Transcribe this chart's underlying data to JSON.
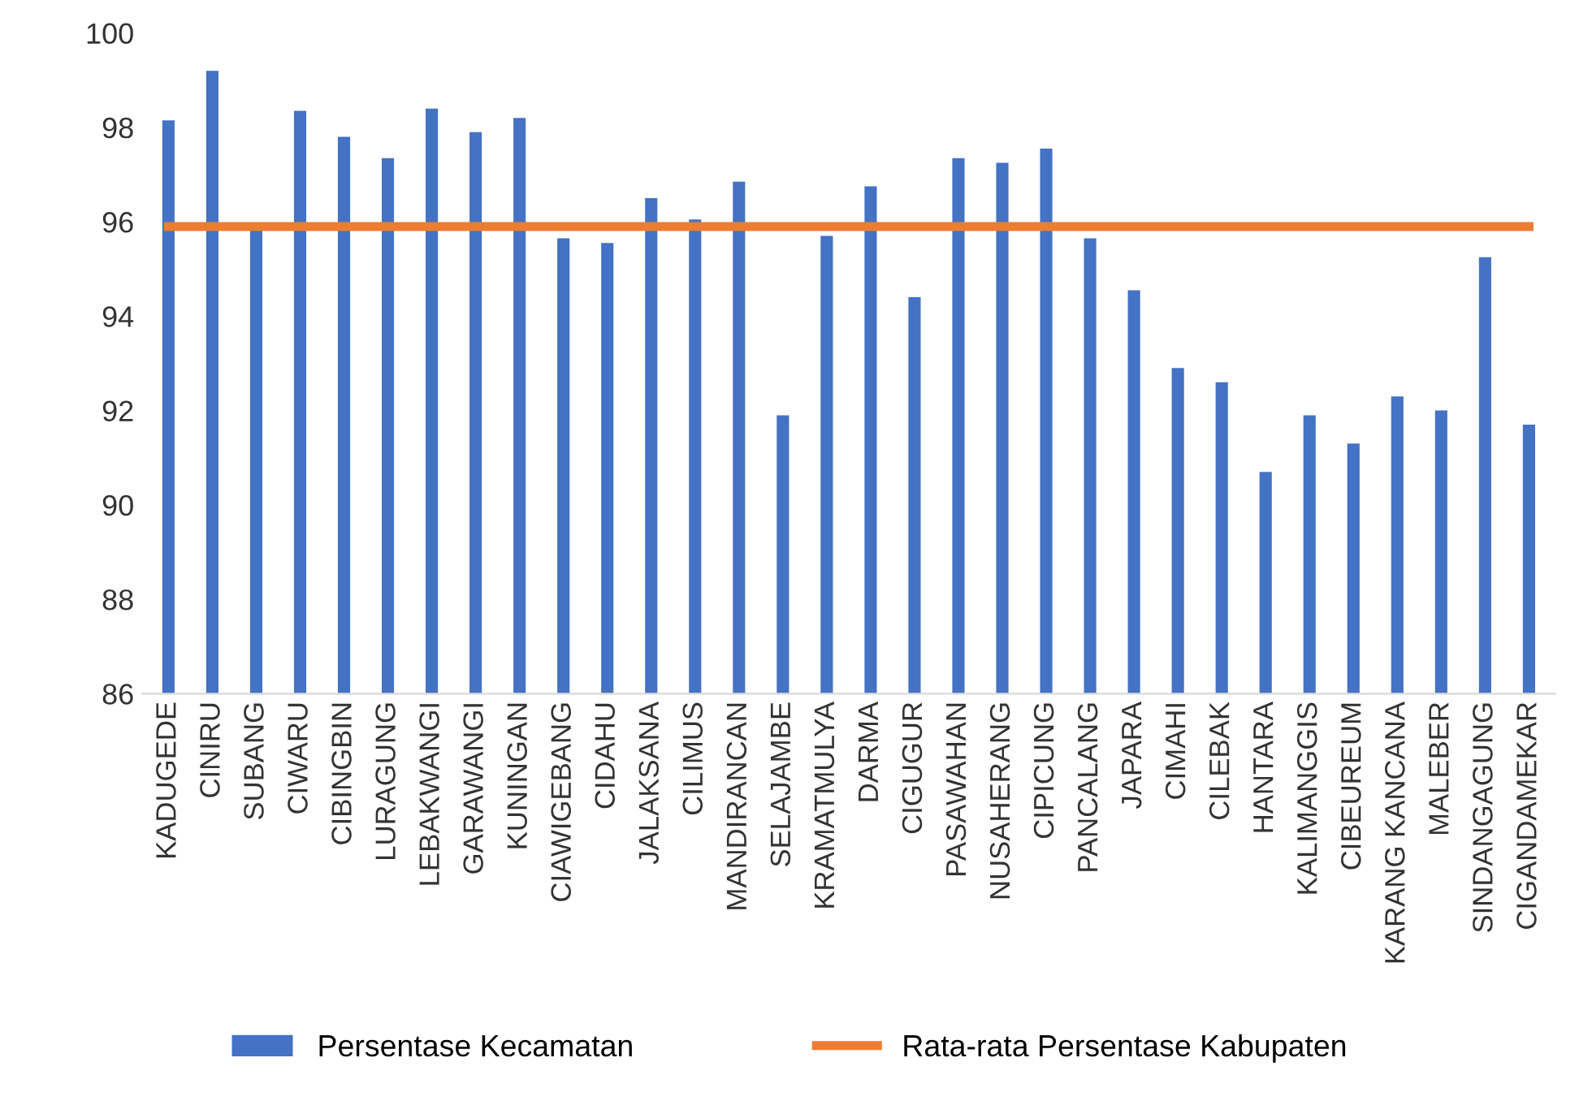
{
  "chart_data": {
    "type": "bar",
    "categories": [
      "KADUGEDE",
      "CINIRU",
      "SUBANG",
      "CIWARU",
      "CIBINGBIN",
      "LURAGUNG",
      "LEBAKWANGI",
      "GARAWANGI",
      "KUNINGAN",
      "CIAWIGEBANG",
      "CIDAHU",
      "JALAKSANA",
      "CILIMUS",
      "MANDIRANCAN",
      "SELAJAMBE",
      "KRAMATMULYA",
      "DARMA",
      "CIGUGUR",
      "PASAWAHAN",
      "NUSAHERANG",
      "CIPICUNG",
      "PANCALANG",
      "JAPARA",
      "CIMAHI",
      "CILEBAK",
      "HANTARA",
      "KALIMANGGIS",
      "CIBEUREUM",
      "KARANG KANCANA",
      "MALEBER",
      "SINDANGAGUNG",
      "CIGANDAMEKAR"
    ],
    "series": [
      {
        "name": "Persentase Kecamatan",
        "color": "#4472c4",
        "values": [
          98.15,
          99.2,
          95.9,
          98.35,
          97.8,
          97.35,
          98.4,
          97.9,
          98.2,
          95.65,
          95.55,
          96.5,
          96.05,
          96.85,
          91.9,
          95.7,
          96.75,
          94.4,
          97.35,
          97.25,
          97.55,
          95.65,
          94.55,
          92.9,
          92.6,
          90.7,
          91.9,
          91.3,
          92.3,
          92.0,
          95.25,
          91.7
        ]
      },
      {
        "name": "Rata-rata Persentase Kabupaten",
        "type": "line",
        "color": "#ed7d31",
        "values": [
          95.9,
          95.9,
          95.9,
          95.9,
          95.9,
          95.9,
          95.9,
          95.9,
          95.9,
          95.9,
          95.9,
          95.9,
          95.9,
          95.9,
          95.9,
          95.9,
          95.9,
          95.9,
          95.9,
          95.9,
          95.9,
          95.9,
          95.9,
          95.9,
          95.9,
          95.9,
          95.9,
          95.9,
          95.9,
          95.9,
          95.9,
          95.9
        ]
      }
    ],
    "ylim": [
      86,
      100
    ],
    "yticks": [
      86,
      88,
      90,
      92,
      94,
      96,
      98,
      100
    ],
    "grid": false,
    "legend": "bottom",
    "marker": "none"
  }
}
